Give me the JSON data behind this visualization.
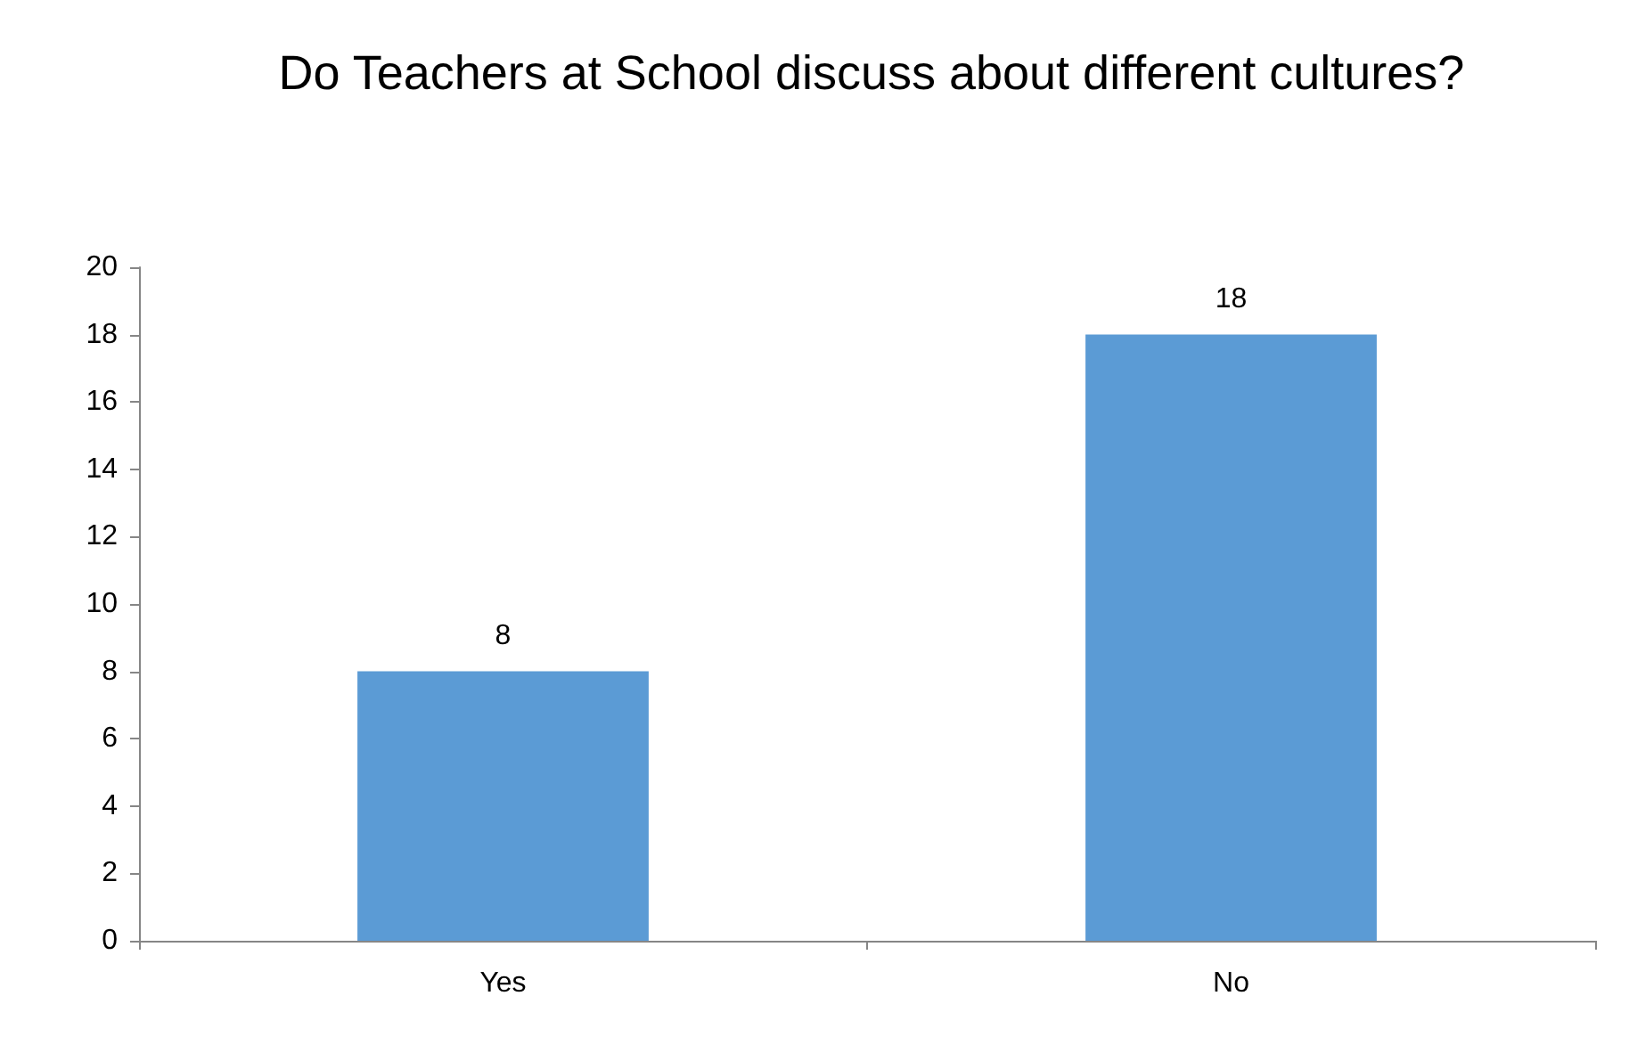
{
  "chart_data": {
    "type": "bar",
    "title": "Do Teachers at School discuss about different cultures?",
    "categories": [
      "Yes",
      "No"
    ],
    "values": [
      8,
      18
    ],
    "color": "#5b9bd5",
    "ylim": [
      0,
      20
    ],
    "yticks": [
      0,
      2,
      4,
      6,
      8,
      10,
      12,
      14,
      16,
      18,
      20
    ],
    "grid": false,
    "data_labels": true
  }
}
